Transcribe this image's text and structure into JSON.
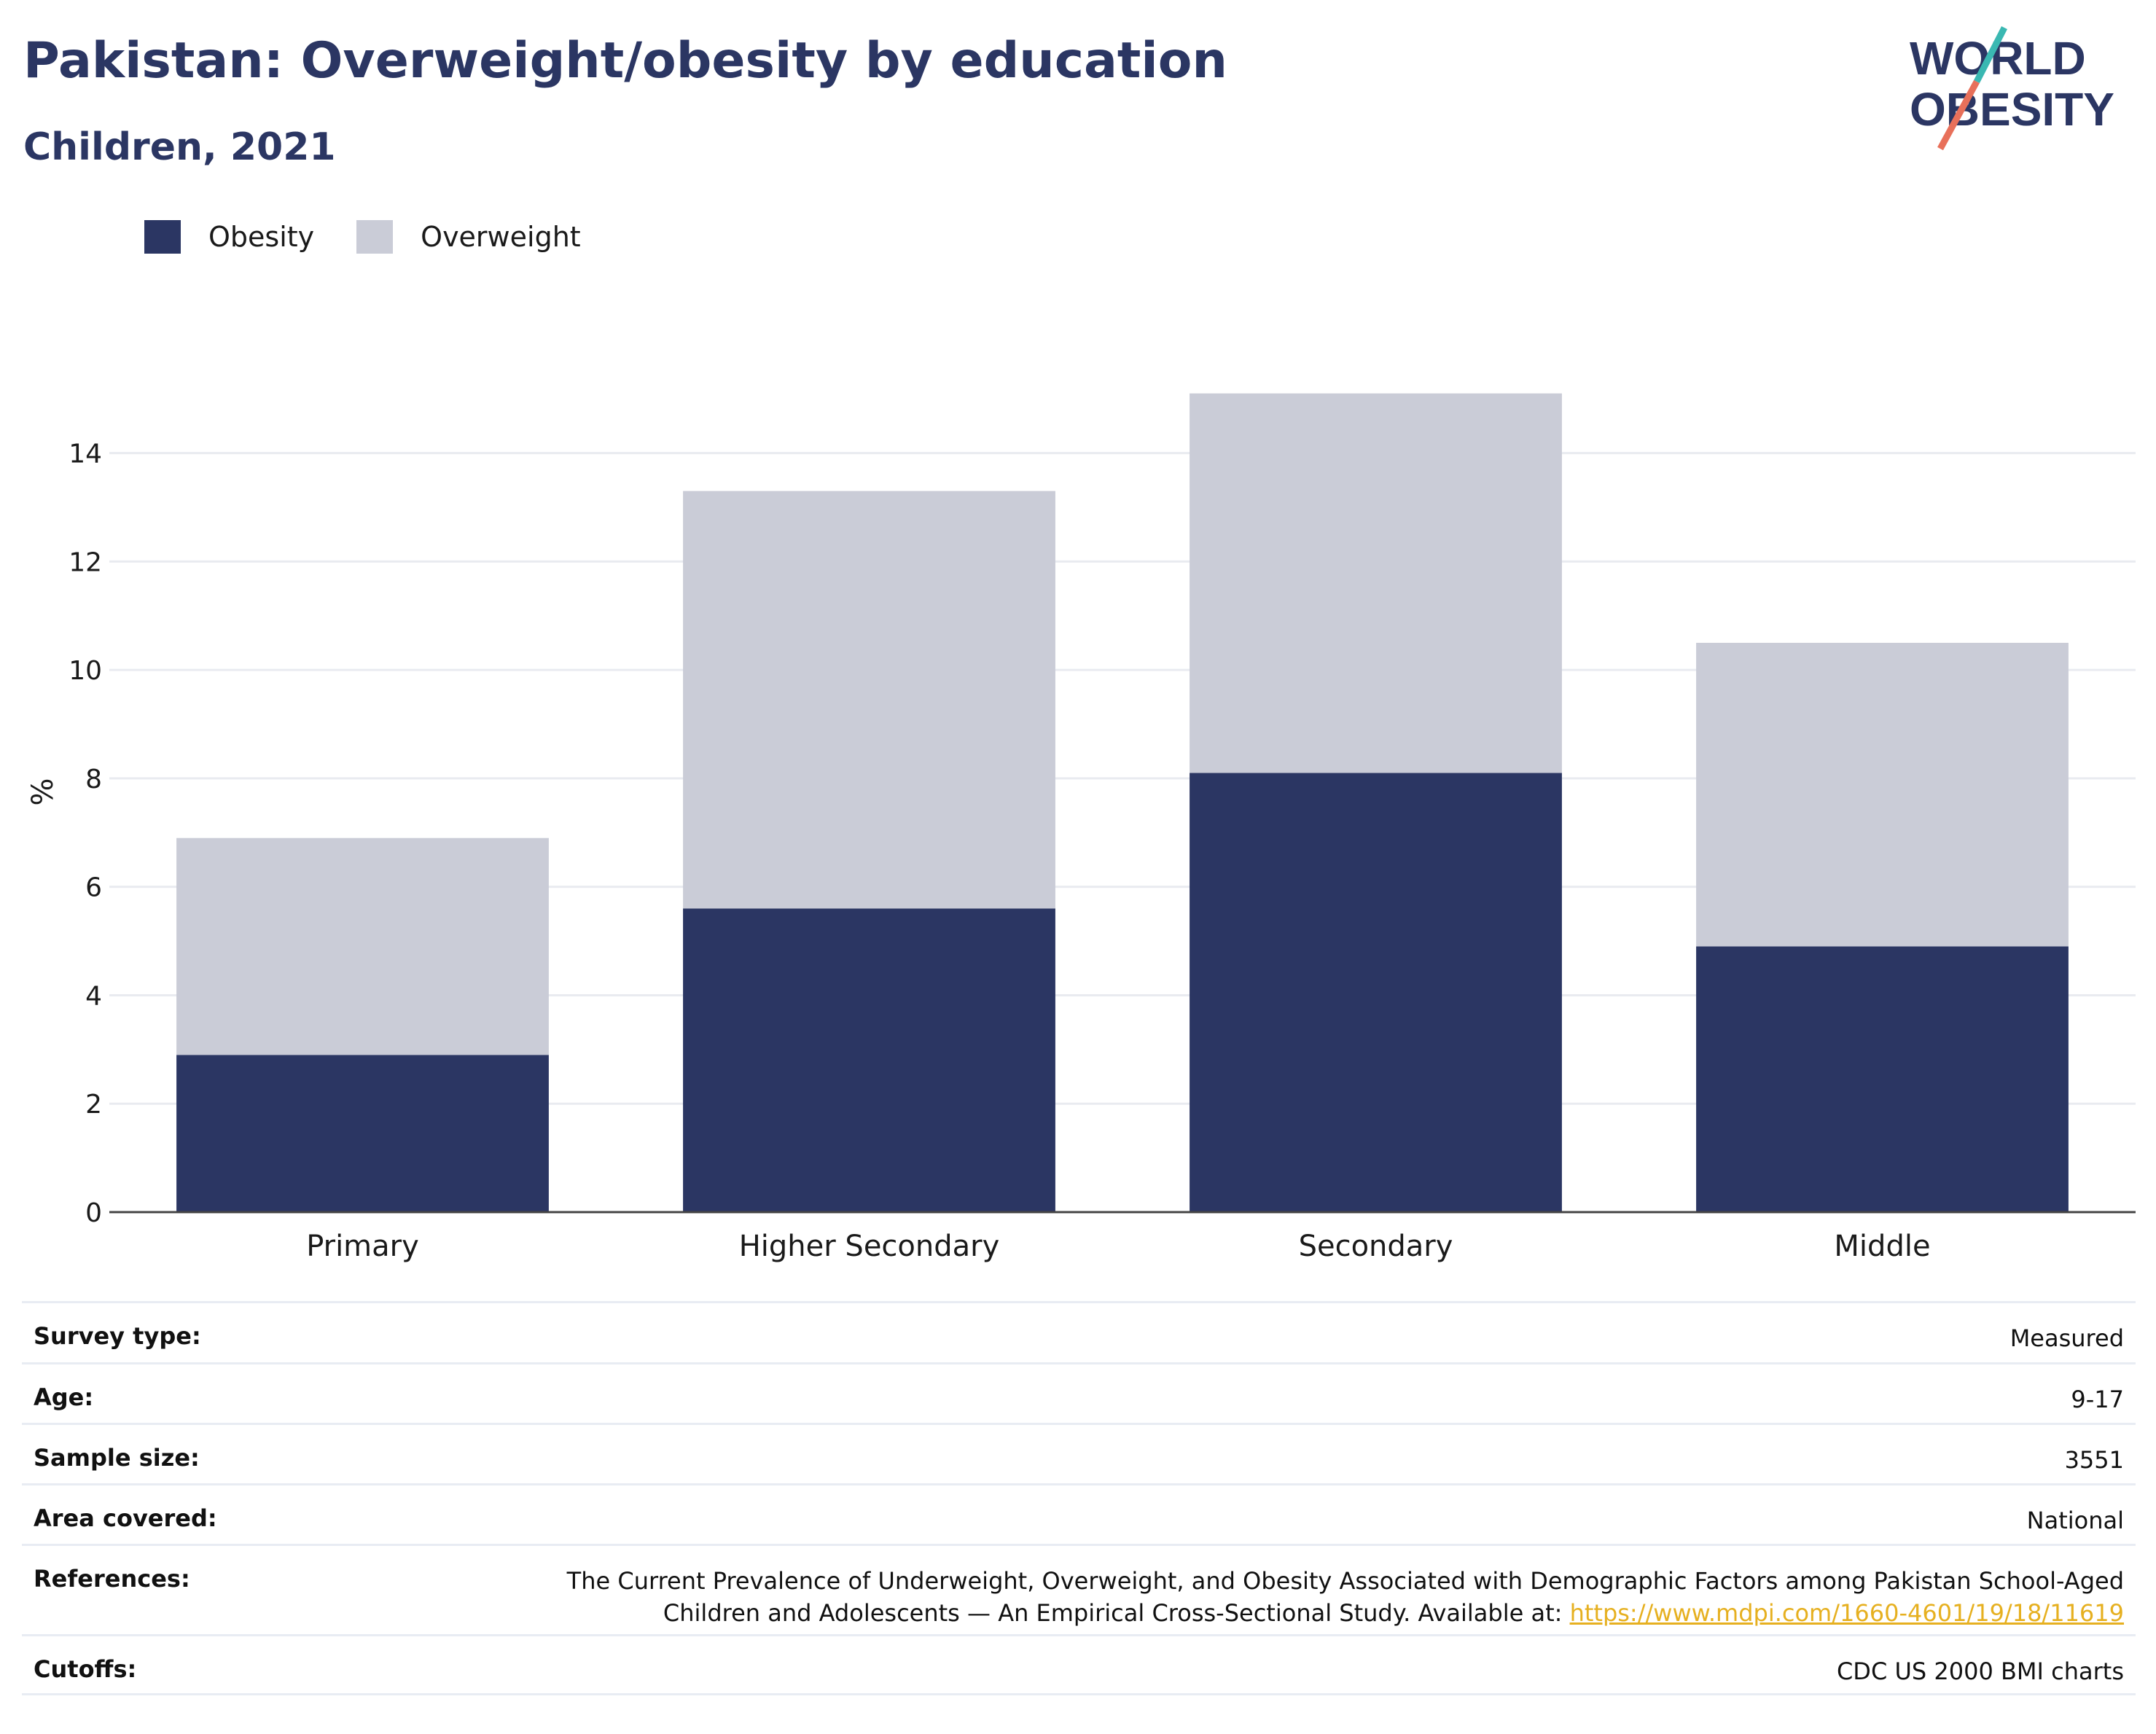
{
  "header": {
    "title": "Pakistan: Overweight/obesity by education",
    "subtitle": "Children, 2021"
  },
  "logo": {
    "line1": "WORLD",
    "line2": "OBESITY",
    "colors": {
      "text": "#2b3663",
      "slash_top": "#3ab8b2",
      "slash_bottom": "#e8705a"
    }
  },
  "legend": [
    {
      "label": "Obesity",
      "color": "#2b3663"
    },
    {
      "label": "Overweight",
      "color": "#caccd7"
    }
  ],
  "chart_data": {
    "type": "bar",
    "stacked": true,
    "categories": [
      "Primary",
      "Higher Secondary",
      "Secondary",
      "Middle"
    ],
    "series": [
      {
        "name": "Obesity",
        "values": [
          2.9,
          5.6,
          8.1,
          4.9
        ],
        "color": "#2b3663"
      },
      {
        "name": "Overweight",
        "values": [
          4.0,
          7.7,
          7.0,
          5.6
        ],
        "color": "#caccd7"
      }
    ],
    "ylabel": "%",
    "xlabel": "",
    "ylim": [
      0,
      15.5
    ],
    "yticks": [
      0,
      2,
      4,
      6,
      8,
      10,
      12,
      14
    ],
    "grid": true,
    "legend_position": "top-left"
  },
  "metadata": {
    "rows": [
      {
        "key": "Survey type:",
        "value": "Measured"
      },
      {
        "key": "Age:",
        "value": "9-17"
      },
      {
        "key": "Sample size:",
        "value": "3551"
      },
      {
        "key": "Area covered:",
        "value": "National"
      },
      {
        "key": "References:",
        "value_line1": "The Current Prevalence of Underweight, Overweight, and Obesity Associated with Demographic Factors among Pakistan School-Aged",
        "value_line2": "Children and Adolescents — An Empirical Cross-Sectional Study. Available at: ",
        "link": "https://www.mdpi.com/1660-4601/19/18/11619"
      },
      {
        "key": "Cutoffs:",
        "value": "CDC US 2000 BMI charts"
      }
    ]
  }
}
